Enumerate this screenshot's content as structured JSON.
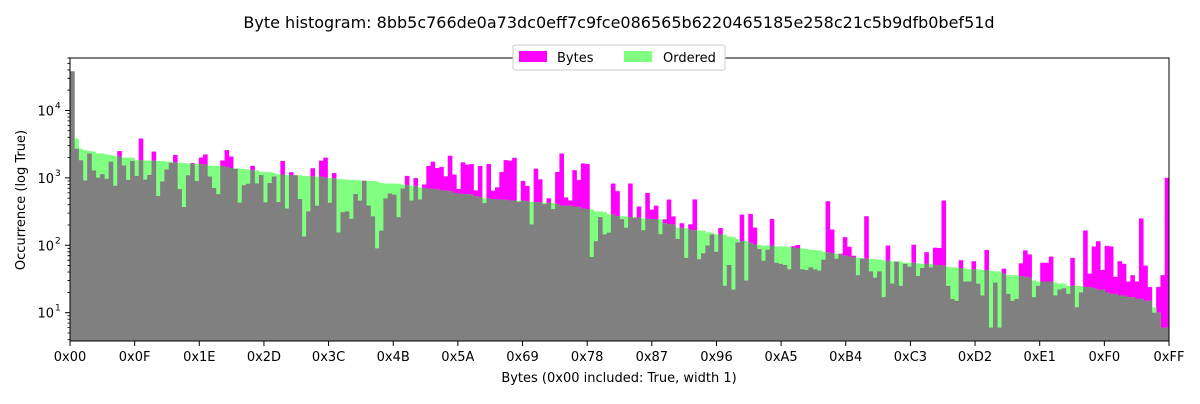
{
  "chart_data": {
    "type": "bar",
    "title": "Byte histogram: 8bb5c766de0a73dc0eff7c9fce086565b6220465185e258c21c5b9dfb0bef51d",
    "xlabel": "Bytes (0x00 included: True, width 1)",
    "ylabel": "Occurrence (log True)",
    "yscale": "log",
    "ylim": [
      3.8,
      60000
    ],
    "xlim": [
      0,
      255
    ],
    "x_ticks": [
      "0x00",
      "0x0F",
      "0x1E",
      "0x2D",
      "0x3C",
      "0x4B",
      "0x5A",
      "0x69",
      "0x78",
      "0x87",
      "0x96",
      "0xA5",
      "0xB4",
      "0xC3",
      "0xD2",
      "0xE1",
      "0xF0",
      "0xFF"
    ],
    "y_ticks": [
      {
        "value": 10,
        "label": "10",
        "exp": "1"
      },
      {
        "value": 100,
        "label": "10",
        "exp": "2"
      },
      {
        "value": 1000,
        "label": "10",
        "exp": "3"
      },
      {
        "value": 10000,
        "label": "10",
        "exp": "4"
      }
    ],
    "legend_position": "top-center",
    "grid": false,
    "series": [
      {
        "name": "Bytes",
        "color": "#ff00ff",
        "note": "occurrence of each byte value 0x00-0xFF"
      },
      {
        "name": "Ordered",
        "color": "#80ff80",
        "note": "same counts sorted in descending order"
      }
    ],
    "overlap_color": "#808080",
    "highlights": [
      {
        "byte": 0,
        "value": 38000
      },
      {
        "byte": 1,
        "value": 2700
      },
      {
        "byte": 11,
        "value": 2500
      },
      {
        "byte": 30,
        "value": 2000
      },
      {
        "byte": 58,
        "value": 1800
      },
      {
        "byte": 59,
        "value": 2000
      },
      {
        "byte": 85,
        "value": 1400
      },
      {
        "byte": 91,
        "value": 1700
      },
      {
        "byte": 95,
        "value": 1500
      },
      {
        "byte": 97,
        "value": 1600
      },
      {
        "byte": 102,
        "value": 1800
      },
      {
        "byte": 114,
        "value": 2300
      },
      {
        "byte": 117,
        "value": 1300
      },
      {
        "byte": 176,
        "value": 450
      },
      {
        "byte": 185,
        "value": 270
      },
      {
        "byte": 203,
        "value": 460
      },
      {
        "byte": 249,
        "value": 250
      },
      {
        "byte": 255,
        "value": 1000
      }
    ]
  }
}
